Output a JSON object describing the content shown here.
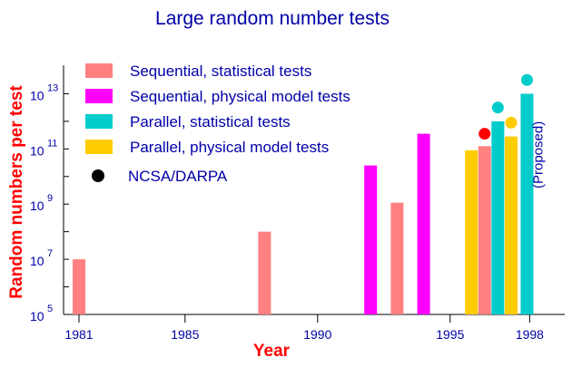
{
  "chart_data": {
    "type": "bar",
    "title": "Large random number tests",
    "xlabel": "Year",
    "ylabel": "Random numbers per test",
    "y_scale": "log",
    "ylim_exponent": [
      5,
      14
    ],
    "xlim": [
      1980.5,
      1998.5
    ],
    "x_ticks": [
      {
        "value": 1981,
        "label": "1981"
      },
      {
        "value": 1985,
        "label": "1985"
      },
      {
        "value": 1990,
        "label": "1990"
      },
      {
        "value": 1995,
        "label": "1995"
      },
      {
        "value": 1998,
        "label": "1998"
      }
    ],
    "y_ticks": [
      {
        "exp": 5,
        "base": "10",
        "sup": "5"
      },
      {
        "exp": 7,
        "base": "10",
        "sup": "7"
      },
      {
        "exp": 9,
        "base": "10",
        "sup": "9"
      },
      {
        "exp": 11,
        "base": "10",
        "sup": "11"
      },
      {
        "exp": 13,
        "base": "10",
        "sup": "13"
      }
    ],
    "series": [
      {
        "name": "Sequential, statistical tests",
        "color": "#ff8080",
        "marker": "bar",
        "points": [
          {
            "x": 1981,
            "exp": 7.0
          },
          {
            "x": 1988,
            "exp": 8.0
          },
          {
            "x": 1993,
            "exp": 9.05
          },
          {
            "x": 1996.3,
            "exp": 11.1
          }
        ]
      },
      {
        "name": "Sequential, physical model tests",
        "color": "#ff00ff",
        "marker": "bar",
        "points": [
          {
            "x": 1992,
            "exp": 10.4
          },
          {
            "x": 1994,
            "exp": 11.55
          }
        ]
      },
      {
        "name": "Parallel, statistical tests",
        "color": "#00cccc",
        "marker": "bar",
        "points": [
          {
            "x": 1996.8,
            "exp": 12.0
          },
          {
            "x": 1997.9,
            "exp": 13.0
          }
        ]
      },
      {
        "name": "Parallel, physical model tests",
        "color": "#ffcc00",
        "marker": "bar",
        "points": [
          {
            "x": 1995.8,
            "exp": 10.95
          },
          {
            "x": 1997.3,
            "exp": 11.45
          }
        ]
      },
      {
        "name": "NCSA/DARPA",
        "color": "#000000",
        "marker": "dot",
        "points": [
          {
            "x": 1996.3,
            "exp": 11.55,
            "color": "#ff0000"
          },
          {
            "x": 1996.8,
            "exp": 12.5,
            "color": "#00cccc"
          },
          {
            "x": 1997.3,
            "exp": 11.95,
            "color": "#ffcc00"
          },
          {
            "x": 1997.9,
            "exp": 13.5,
            "color": "#00cccc"
          }
        ]
      }
    ],
    "legend_position": "top-left",
    "annotations": [
      {
        "text": "(Proposed)",
        "x": 1997.9
      }
    ]
  }
}
